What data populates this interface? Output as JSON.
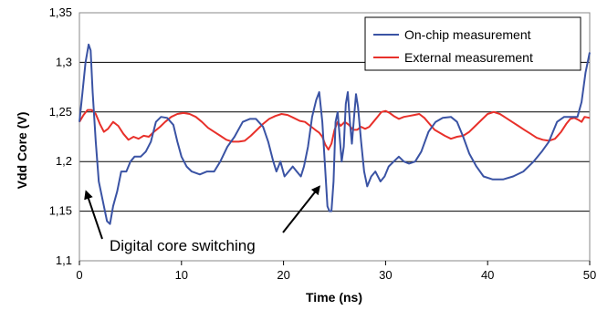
{
  "chart_data": {
    "type": "line",
    "title": "",
    "xlabel": "Time (ns)",
    "ylabel": "Vdd Core (V)",
    "xlim": [
      0,
      50
    ],
    "ylim": [
      1.1,
      1.35
    ],
    "x_ticks": [
      0,
      10,
      20,
      30,
      40,
      50
    ],
    "x_tick_labels": [
      "0",
      "10",
      "20",
      "30",
      "40",
      "50"
    ],
    "y_ticks": [
      1.1,
      1.15,
      1.2,
      1.25,
      1.3,
      1.35
    ],
    "y_tick_labels": [
      "1,1",
      "1,15",
      "1,2",
      "1,25",
      "1,3",
      "1,35"
    ],
    "grid": "horizontal",
    "legend_position": "top-right",
    "series": [
      {
        "name": "On-chip measurement",
        "color": "#3a53a4",
        "points": [
          [
            0,
            1.24
          ],
          [
            0.3,
            1.27
          ],
          [
            0.6,
            1.3
          ],
          [
            0.9,
            1.318
          ],
          [
            1.1,
            1.312
          ],
          [
            1.3,
            1.27
          ],
          [
            1.6,
            1.22
          ],
          [
            1.9,
            1.18
          ],
          [
            2.3,
            1.16
          ],
          [
            2.7,
            1.14
          ],
          [
            3.0,
            1.137
          ],
          [
            3.3,
            1.155
          ],
          [
            3.7,
            1.17
          ],
          [
            4.1,
            1.19
          ],
          [
            4.6,
            1.19
          ],
          [
            5.0,
            1.2
          ],
          [
            5.4,
            1.205
          ],
          [
            6.0,
            1.205
          ],
          [
            6.5,
            1.21
          ],
          [
            7.0,
            1.22
          ],
          [
            7.5,
            1.24
          ],
          [
            8.0,
            1.245
          ],
          [
            8.6,
            1.244
          ],
          [
            9.2,
            1.237
          ],
          [
            9.6,
            1.22
          ],
          [
            10.0,
            1.205
          ],
          [
            10.5,
            1.195
          ],
          [
            11.0,
            1.19
          ],
          [
            11.8,
            1.187
          ],
          [
            12.5,
            1.19
          ],
          [
            13.2,
            1.19
          ],
          [
            13.8,
            1.2
          ],
          [
            14.5,
            1.215
          ],
          [
            15.2,
            1.225
          ],
          [
            16.0,
            1.24
          ],
          [
            16.7,
            1.243
          ],
          [
            17.3,
            1.243
          ],
          [
            18.0,
            1.235
          ],
          [
            18.5,
            1.22
          ],
          [
            19.0,
            1.2
          ],
          [
            19.3,
            1.19
          ],
          [
            19.7,
            1.2
          ],
          [
            20.1,
            1.185
          ],
          [
            20.5,
            1.19
          ],
          [
            20.9,
            1.195
          ],
          [
            21.3,
            1.19
          ],
          [
            21.7,
            1.185
          ],
          [
            22.0,
            1.195
          ],
          [
            22.4,
            1.215
          ],
          [
            22.8,
            1.245
          ],
          [
            23.2,
            1.262
          ],
          [
            23.5,
            1.27
          ],
          [
            23.8,
            1.24
          ],
          [
            24.1,
            1.19
          ],
          [
            24.3,
            1.155
          ],
          [
            24.5,
            1.15
          ],
          [
            24.7,
            1.15
          ],
          [
            24.9,
            1.18
          ],
          [
            25.1,
            1.24
          ],
          [
            25.3,
            1.25
          ],
          [
            25.5,
            1.225
          ],
          [
            25.7,
            1.2
          ],
          [
            25.9,
            1.215
          ],
          [
            26.1,
            1.258
          ],
          [
            26.3,
            1.27
          ],
          [
            26.5,
            1.24
          ],
          [
            26.7,
            1.218
          ],
          [
            26.9,
            1.243
          ],
          [
            27.1,
            1.268
          ],
          [
            27.3,
            1.255
          ],
          [
            27.6,
            1.22
          ],
          [
            27.9,
            1.19
          ],
          [
            28.2,
            1.175
          ],
          [
            28.6,
            1.185
          ],
          [
            29.0,
            1.19
          ],
          [
            29.5,
            1.18
          ],
          [
            29.9,
            1.185
          ],
          [
            30.3,
            1.195
          ],
          [
            30.8,
            1.2
          ],
          [
            31.3,
            1.205
          ],
          [
            31.8,
            1.2
          ],
          [
            32.3,
            1.198
          ],
          [
            32.9,
            1.2
          ],
          [
            33.5,
            1.21
          ],
          [
            34.2,
            1.23
          ],
          [
            34.9,
            1.24
          ],
          [
            35.6,
            1.244
          ],
          [
            36.4,
            1.245
          ],
          [
            37.0,
            1.24
          ],
          [
            37.6,
            1.225
          ],
          [
            38.2,
            1.208
          ],
          [
            38.9,
            1.195
          ],
          [
            39.6,
            1.185
          ],
          [
            40.5,
            1.182
          ],
          [
            41.5,
            1.182
          ],
          [
            42.5,
            1.185
          ],
          [
            43.5,
            1.19
          ],
          [
            44.5,
            1.2
          ],
          [
            45.3,
            1.21
          ],
          [
            46.0,
            1.22
          ],
          [
            46.8,
            1.24
          ],
          [
            47.5,
            1.245
          ],
          [
            48.2,
            1.245
          ],
          [
            48.8,
            1.245
          ],
          [
            49.2,
            1.26
          ],
          [
            49.6,
            1.29
          ],
          [
            50.0,
            1.31
          ]
        ]
      },
      {
        "name": "External measurement",
        "color": "#e8302a",
        "points": [
          [
            0,
            1.24
          ],
          [
            0.4,
            1.247
          ],
          [
            0.8,
            1.252
          ],
          [
            1.2,
            1.252
          ],
          [
            1.6,
            1.248
          ],
          [
            2.0,
            1.238
          ],
          [
            2.4,
            1.23
          ],
          [
            2.8,
            1.233
          ],
          [
            3.3,
            1.24
          ],
          [
            3.8,
            1.236
          ],
          [
            4.3,
            1.228
          ],
          [
            4.8,
            1.222
          ],
          [
            5.3,
            1.225
          ],
          [
            5.8,
            1.223
          ],
          [
            6.3,
            1.226
          ],
          [
            6.8,
            1.225
          ],
          [
            7.3,
            1.23
          ],
          [
            7.9,
            1.235
          ],
          [
            8.4,
            1.24
          ],
          [
            9.0,
            1.245
          ],
          [
            9.6,
            1.248
          ],
          [
            10.2,
            1.249
          ],
          [
            10.8,
            1.248
          ],
          [
            11.4,
            1.245
          ],
          [
            12.0,
            1.24
          ],
          [
            12.6,
            1.234
          ],
          [
            13.2,
            1.23
          ],
          [
            13.8,
            1.226
          ],
          [
            14.4,
            1.222
          ],
          [
            15.0,
            1.22
          ],
          [
            15.6,
            1.22
          ],
          [
            16.2,
            1.221
          ],
          [
            16.8,
            1.226
          ],
          [
            17.4,
            1.232
          ],
          [
            18.0,
            1.238
          ],
          [
            18.6,
            1.243
          ],
          [
            19.2,
            1.246
          ],
          [
            19.8,
            1.248
          ],
          [
            20.4,
            1.247
          ],
          [
            21.0,
            1.244
          ],
          [
            21.6,
            1.241
          ],
          [
            22.1,
            1.24
          ],
          [
            22.6,
            1.236
          ],
          [
            23.1,
            1.232
          ],
          [
            23.5,
            1.229
          ],
          [
            23.8,
            1.225
          ],
          [
            24.1,
            1.217
          ],
          [
            24.4,
            1.212
          ],
          [
            24.7,
            1.218
          ],
          [
            25.0,
            1.232
          ],
          [
            25.3,
            1.24
          ],
          [
            25.6,
            1.236
          ],
          [
            26.0,
            1.24
          ],
          [
            26.4,
            1.237
          ],
          [
            26.8,
            1.232
          ],
          [
            27.2,
            1.232
          ],
          [
            27.6,
            1.235
          ],
          [
            28.0,
            1.233
          ],
          [
            28.4,
            1.235
          ],
          [
            28.8,
            1.24
          ],
          [
            29.2,
            1.245
          ],
          [
            29.6,
            1.25
          ],
          [
            30.0,
            1.251
          ],
          [
            30.4,
            1.249
          ],
          [
            30.8,
            1.246
          ],
          [
            31.3,
            1.243
          ],
          [
            31.8,
            1.245
          ],
          [
            32.3,
            1.246
          ],
          [
            32.8,
            1.247
          ],
          [
            33.3,
            1.248
          ],
          [
            33.8,
            1.244
          ],
          [
            34.3,
            1.238
          ],
          [
            34.8,
            1.232
          ],
          [
            35.3,
            1.229
          ],
          [
            35.8,
            1.226
          ],
          [
            36.4,
            1.223
          ],
          [
            37.0,
            1.225
          ],
          [
            37.6,
            1.226
          ],
          [
            38.2,
            1.23
          ],
          [
            38.8,
            1.236
          ],
          [
            39.4,
            1.242
          ],
          [
            40.0,
            1.248
          ],
          [
            40.6,
            1.25
          ],
          [
            41.2,
            1.248
          ],
          [
            41.8,
            1.244
          ],
          [
            42.4,
            1.24
          ],
          [
            43.0,
            1.236
          ],
          [
            43.6,
            1.232
          ],
          [
            44.2,
            1.228
          ],
          [
            44.8,
            1.224
          ],
          [
            45.4,
            1.222
          ],
          [
            46.0,
            1.221
          ],
          [
            46.6,
            1.223
          ],
          [
            47.2,
            1.23
          ],
          [
            47.7,
            1.238
          ],
          [
            48.1,
            1.243
          ],
          [
            48.5,
            1.244
          ],
          [
            48.9,
            1.242
          ],
          [
            49.2,
            1.24
          ],
          [
            49.5,
            1.245
          ],
          [
            50.0,
            1.244
          ]
        ]
      }
    ],
    "annotations": [
      {
        "text": "Digital core switching",
        "arrows_to": [
          [
            0.3,
            1.177
          ],
          [
            23.5,
            1.182
          ]
        ]
      }
    ]
  }
}
